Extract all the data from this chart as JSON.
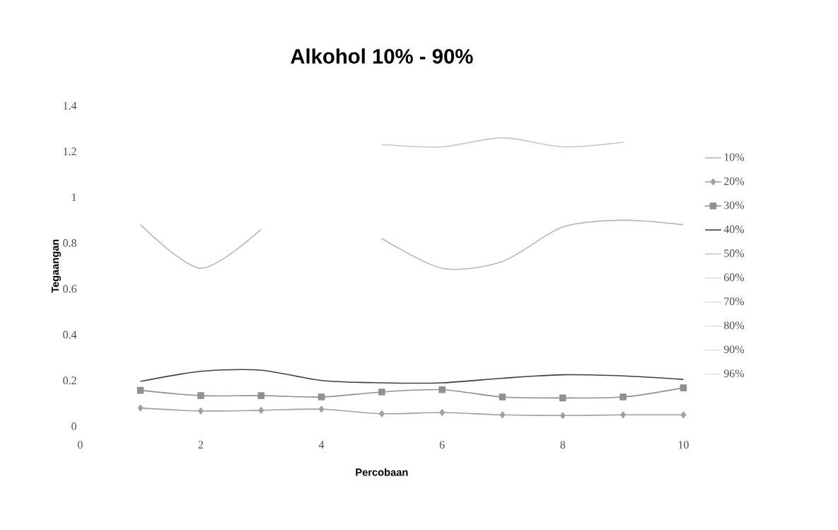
{
  "chart_data": {
    "type": "line",
    "title": "Alkohol 10% - 90%",
    "xlabel": "Percobaan",
    "ylabel": "Tegaangan",
    "x": [
      1,
      2,
      3,
      4,
      5,
      6,
      7,
      8,
      9,
      10
    ],
    "xlim": [
      0,
      10
    ],
    "xticks": [
      0,
      2,
      4,
      6,
      8,
      10
    ],
    "ylim": [
      0,
      1.4
    ],
    "yticks": [
      0,
      0.2,
      0.4,
      0.6,
      0.8,
      1,
      1.2,
      1.4
    ],
    "grid": false,
    "legend": "right",
    "series": [
      {
        "name": "10%",
        "color": "#b8b8b8",
        "marker": "none",
        "values": [
          0.88,
          0.69,
          0.86,
          null,
          0.82,
          0.69,
          0.72,
          0.87,
          0.9,
          0.88
        ]
      },
      {
        "name": "20%",
        "color": "#a0a0a0",
        "marker": "diamond",
        "values": [
          0.08,
          0.067,
          0.07,
          0.075,
          0.055,
          0.06,
          0.05,
          0.047,
          0.05,
          0.05
        ]
      },
      {
        "name": "30%",
        "color": "#909090",
        "marker": "square",
        "values": [
          0.157,
          0.134,
          0.134,
          0.128,
          0.15,
          0.16,
          0.128,
          0.124,
          0.128,
          0.168
        ]
      },
      {
        "name": "40%",
        "color": "#404040",
        "marker": "none",
        "values": [
          0.196,
          0.24,
          0.245,
          0.2,
          0.19,
          0.19,
          0.21,
          0.225,
          0.22,
          0.205
        ]
      },
      {
        "name": "50%",
        "color": "#c8c8c8",
        "marker": "none",
        "values": [
          null,
          null,
          null,
          null,
          1.23,
          1.22,
          1.26,
          1.22,
          1.24,
          null
        ]
      },
      {
        "name": "60%",
        "color": "#e0e0e0",
        "marker": "none",
        "values": [
          null,
          null,
          null,
          null,
          null,
          null,
          null,
          null,
          null,
          null
        ]
      },
      {
        "name": "70%",
        "color": "#e0e0e0",
        "marker": "none",
        "values": [
          null,
          null,
          null,
          null,
          null,
          null,
          null,
          null,
          null,
          null
        ]
      },
      {
        "name": "80%",
        "color": "#e0e0e0",
        "marker": "none",
        "values": [
          null,
          null,
          null,
          null,
          null,
          null,
          null,
          null,
          null,
          null
        ]
      },
      {
        "name": "90%",
        "color": "#e0e0e0",
        "marker": "none",
        "values": [
          null,
          null,
          null,
          null,
          null,
          null,
          null,
          null,
          null,
          null
        ]
      },
      {
        "name": "96%",
        "color": "#e0e0e0",
        "marker": "none",
        "values": [
          null,
          null,
          null,
          null,
          null,
          null,
          null,
          null,
          null,
          null
        ]
      }
    ]
  }
}
